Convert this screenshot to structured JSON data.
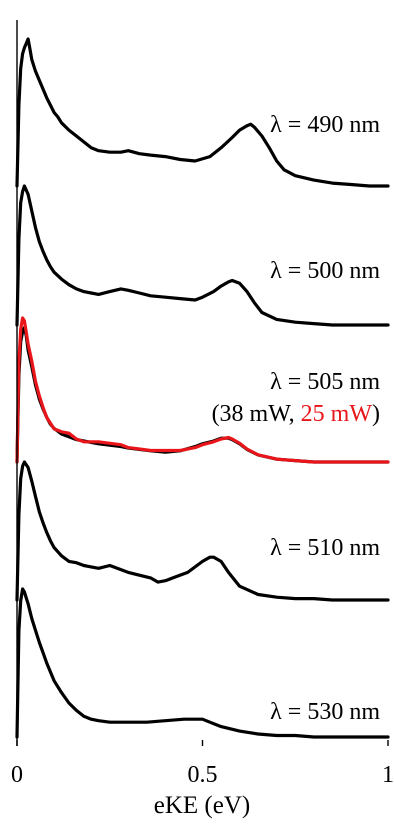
{
  "chart_data": {
    "type": "line",
    "xlabel": "eKE (eV)",
    "ylabel": "",
    "xlim": [
      0,
      1
    ],
    "x_ticks": [
      {
        "value": 0,
        "label": "0"
      },
      {
        "value": 0.5,
        "label": "0.5"
      },
      {
        "value": 1,
        "label": "1"
      }
    ],
    "layout": "stacked offset traces, no y-axis ticks",
    "colors": {
      "default": "#000000",
      "highlight": "#e8161b"
    },
    "series": [
      {
        "label": "λ = 490 nm",
        "label_parts": [
          {
            "text": "λ = 490 nm",
            "color": "#000000"
          }
        ],
        "color": "#000000",
        "x": [
          0,
          0.005,
          0.01,
          0.015,
          0.02,
          0.025,
          0.03,
          0.035,
          0.04,
          0.05,
          0.06,
          0.07,
          0.08,
          0.09,
          0.1,
          0.11,
          0.12,
          0.14,
          0.16,
          0.18,
          0.2,
          0.22,
          0.25,
          0.28,
          0.3,
          0.33,
          0.36,
          0.4,
          0.44,
          0.48,
          0.52,
          0.55,
          0.58,
          0.6,
          0.62,
          0.63,
          0.64,
          0.66,
          0.68,
          0.7,
          0.72,
          0.75,
          0.8,
          0.85,
          0.9,
          0.95,
          1.0
        ],
        "y": [
          0.0,
          0.55,
          0.8,
          0.9,
          0.94,
          0.97,
          1.0,
          0.93,
          0.86,
          0.78,
          0.72,
          0.66,
          0.6,
          0.55,
          0.5,
          0.47,
          0.43,
          0.38,
          0.34,
          0.3,
          0.26,
          0.24,
          0.23,
          0.23,
          0.24,
          0.22,
          0.21,
          0.2,
          0.18,
          0.17,
          0.2,
          0.26,
          0.33,
          0.38,
          0.41,
          0.42,
          0.4,
          0.34,
          0.26,
          0.17,
          0.11,
          0.07,
          0.04,
          0.02,
          0.01,
          0.0,
          0.0
        ]
      },
      {
        "label": "λ = 500 nm",
        "label_parts": [
          {
            "text": "λ = 500 nm",
            "color": "#000000"
          }
        ],
        "color": "#000000",
        "x": [
          0,
          0.005,
          0.01,
          0.015,
          0.02,
          0.03,
          0.04,
          0.05,
          0.06,
          0.07,
          0.08,
          0.09,
          0.1,
          0.12,
          0.14,
          0.16,
          0.18,
          0.2,
          0.22,
          0.25,
          0.28,
          0.3,
          0.33,
          0.36,
          0.4,
          0.44,
          0.48,
          0.5,
          0.53,
          0.55,
          0.57,
          0.58,
          0.6,
          0.62,
          0.64,
          0.66,
          0.7,
          0.75,
          0.8,
          0.85,
          0.9,
          0.95,
          1.0
        ],
        "y": [
          0.0,
          0.62,
          0.88,
          0.96,
          1.0,
          0.94,
          0.82,
          0.7,
          0.6,
          0.53,
          0.47,
          0.42,
          0.38,
          0.33,
          0.29,
          0.26,
          0.24,
          0.23,
          0.22,
          0.24,
          0.26,
          0.25,
          0.23,
          0.21,
          0.2,
          0.19,
          0.18,
          0.2,
          0.24,
          0.28,
          0.31,
          0.32,
          0.3,
          0.24,
          0.16,
          0.09,
          0.04,
          0.02,
          0.01,
          0.0,
          0.0,
          0.0,
          0.0
        ]
      },
      {
        "label": "λ = 505 nm",
        "label_parts": [
          {
            "text": "λ = 505 nm",
            "color": "#000000",
            "line": 1
          },
          {
            "text": "(38 mW, ",
            "color": "#000000",
            "line": 2
          },
          {
            "text": "25 mW",
            "color": "#e8161b",
            "line": 2
          },
          {
            "text": ")",
            "color": "#000000",
            "line": 2
          }
        ],
        "color": "#000000",
        "x": [
          0,
          0.005,
          0.01,
          0.015,
          0.02,
          0.025,
          0.03,
          0.04,
          0.05,
          0.06,
          0.07,
          0.08,
          0.09,
          0.1,
          0.12,
          0.14,
          0.16,
          0.18,
          0.2,
          0.22,
          0.25,
          0.28,
          0.3,
          0.33,
          0.36,
          0.4,
          0.44,
          0.48,
          0.5,
          0.53,
          0.55,
          0.57,
          0.58,
          0.6,
          0.62,
          0.65,
          0.7,
          0.75,
          0.8,
          0.85,
          0.9,
          0.95,
          1.0
        ],
        "y": [
          0.0,
          0.62,
          0.86,
          0.93,
          0.96,
          0.9,
          0.8,
          0.68,
          0.55,
          0.45,
          0.38,
          0.32,
          0.27,
          0.24,
          0.2,
          0.18,
          0.16,
          0.15,
          0.14,
          0.13,
          0.12,
          0.11,
          0.1,
          0.09,
          0.08,
          0.07,
          0.08,
          0.11,
          0.13,
          0.15,
          0.17,
          0.17,
          0.16,
          0.13,
          0.09,
          0.05,
          0.02,
          0.01,
          0.0,
          0.0,
          0.0,
          0.0,
          0.0
        ]
      },
      {
        "label": "",
        "label_parts": [],
        "color": "#e8161b",
        "x": [
          0,
          0.005,
          0.01,
          0.015,
          0.02,
          0.025,
          0.03,
          0.04,
          0.05,
          0.06,
          0.07,
          0.08,
          0.09,
          0.1,
          0.12,
          0.14,
          0.16,
          0.18,
          0.2,
          0.22,
          0.25,
          0.28,
          0.3,
          0.33,
          0.36,
          0.4,
          0.44,
          0.48,
          0.5,
          0.53,
          0.55,
          0.57,
          0.58,
          0.6,
          0.62,
          0.65,
          0.7,
          0.75,
          0.8,
          0.85,
          0.9,
          0.95,
          1.0
        ],
        "y": [
          0.0,
          0.7,
          0.92,
          1.0,
          0.98,
          0.9,
          0.82,
          0.7,
          0.56,
          0.46,
          0.38,
          0.31,
          0.27,
          0.23,
          0.21,
          0.2,
          0.16,
          0.14,
          0.14,
          0.14,
          0.13,
          0.12,
          0.1,
          0.09,
          0.08,
          0.08,
          0.08,
          0.1,
          0.12,
          0.14,
          0.16,
          0.17,
          0.16,
          0.13,
          0.09,
          0.05,
          0.02,
          0.01,
          0.0,
          0.0,
          0.0,
          0.0,
          0.0
        ]
      },
      {
        "label": "λ = 510 nm",
        "label_parts": [
          {
            "text": "λ = 510 nm",
            "color": "#000000"
          }
        ],
        "color": "#000000",
        "x": [
          0,
          0.005,
          0.01,
          0.015,
          0.02,
          0.03,
          0.04,
          0.05,
          0.06,
          0.07,
          0.08,
          0.09,
          0.1,
          0.12,
          0.14,
          0.16,
          0.18,
          0.2,
          0.22,
          0.25,
          0.28,
          0.3,
          0.33,
          0.36,
          0.38,
          0.4,
          0.43,
          0.46,
          0.48,
          0.5,
          0.52,
          0.53,
          0.55,
          0.57,
          0.6,
          0.65,
          0.7,
          0.75,
          0.8,
          0.85,
          0.9,
          0.95,
          1.0
        ],
        "y": [
          0.0,
          0.62,
          0.88,
          0.97,
          1.0,
          0.96,
          0.86,
          0.75,
          0.64,
          0.56,
          0.49,
          0.43,
          0.38,
          0.32,
          0.28,
          0.27,
          0.25,
          0.24,
          0.23,
          0.25,
          0.22,
          0.2,
          0.18,
          0.16,
          0.13,
          0.14,
          0.17,
          0.2,
          0.24,
          0.28,
          0.31,
          0.31,
          0.28,
          0.2,
          0.1,
          0.04,
          0.02,
          0.01,
          0.01,
          0.0,
          0.0,
          0.0,
          0.0
        ]
      },
      {
        "label": "λ = 530 nm",
        "label_parts": [
          {
            "text": "λ = 530 nm",
            "color": "#000000"
          }
        ],
        "color": "#000000",
        "x": [
          0,
          0.005,
          0.01,
          0.015,
          0.02,
          0.03,
          0.04,
          0.05,
          0.06,
          0.07,
          0.08,
          0.09,
          0.1,
          0.12,
          0.14,
          0.16,
          0.18,
          0.2,
          0.22,
          0.25,
          0.3,
          0.35,
          0.4,
          0.45,
          0.5,
          0.52,
          0.55,
          0.6,
          0.65,
          0.7,
          0.75,
          0.8,
          0.85,
          0.9,
          0.95,
          1.0
        ],
        "y": [
          0.0,
          0.72,
          0.92,
          1.0,
          0.98,
          0.9,
          0.8,
          0.72,
          0.64,
          0.57,
          0.5,
          0.44,
          0.38,
          0.3,
          0.23,
          0.18,
          0.14,
          0.12,
          0.11,
          0.1,
          0.1,
          0.1,
          0.11,
          0.12,
          0.12,
          0.1,
          0.07,
          0.04,
          0.02,
          0.01,
          0.01,
          0.0,
          0.0,
          0.0,
          0.0,
          0.0
        ]
      }
    ]
  }
}
